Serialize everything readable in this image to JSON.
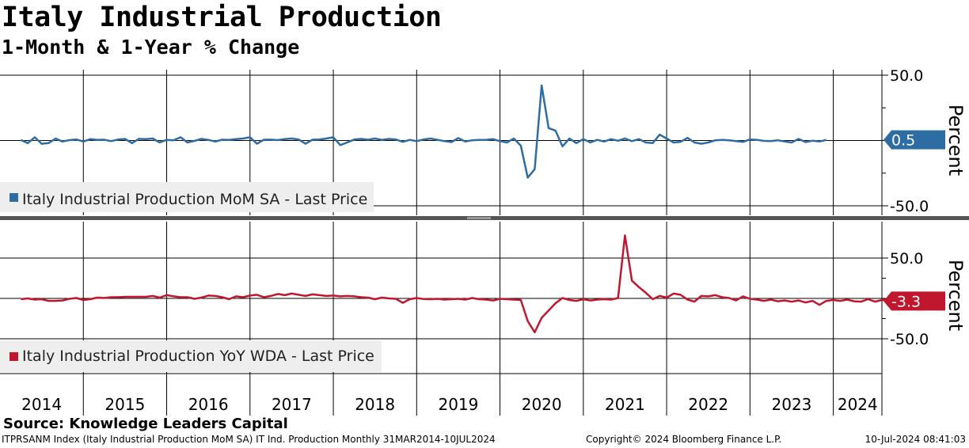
{
  "title": "Italy Industrial Production",
  "subtitle": "1-Month & 1-Year % Change",
  "source": "Source: Knowledge Leaders Capital",
  "footer": {
    "left": "ITPRSANM Index (Italy Industrial Production MoM SA) IT Ind. Production  Monthly 31MAR2014-10JUL2024",
    "middle": "Copyright© 2024 Bloomberg Finance L.P.",
    "right": "10-Jul-2024 08:41:03"
  },
  "colors": {
    "top_series": "#2e6da4",
    "bottom_series": "#c0172e",
    "grid": "#000000"
  },
  "chart_data": [
    {
      "type": "line",
      "ylabel": "Percent",
      "yticks": [
        "50.0",
        "-50.0"
      ],
      "ylim": [
        -55,
        55
      ],
      "grid": true,
      "legend_placement": "bottom-left",
      "last_value_label": "0.5",
      "series": [
        {
          "name": "Italy Industrial Production MoM SA - Last Price",
          "x_start": "2014-04",
          "values": [
            0.4,
            -2.0,
            2.5,
            -2.5,
            -2.0,
            1.5,
            -0.8,
            0.3,
            0.8,
            -0.8,
            1.0,
            0.5,
            0.6,
            -0.5,
            0.7,
            1.2,
            -2.0,
            1.3,
            1.0,
            1.5,
            -1.5,
            0.5,
            0.2,
            2.5,
            -1.5,
            -0.3,
            1.2,
            0.5,
            -0.8,
            0.6,
            0.5,
            1.0,
            1.5,
            2.5,
            -2.5,
            0.6,
            0.6,
            0.3,
            1.0,
            1.5,
            0.8,
            -2.5,
            0.6,
            0.8,
            1.5,
            2.5,
            -3.5,
            -1.5,
            0.7,
            1.2,
            0.6,
            1.5,
            0.5,
            1.2,
            0.8,
            -1.0,
            0.5,
            -0.5,
            0.8,
            1.5,
            0.5,
            -0.5,
            -1.2,
            1.8,
            -0.8,
            0.2,
            0.5,
            0.5,
            1.0,
            -0.5,
            -1.5,
            1.5,
            -4.0,
            -28.4,
            -22.0,
            42.1,
            9.5,
            7.5,
            -4.5,
            1.5,
            -2.0,
            1.0,
            -1.5,
            0.5,
            -0.8,
            1.0,
            -0.2,
            1.5,
            -0.5,
            1.0,
            -1.5,
            -2.0,
            4.5,
            1.5,
            -1.5,
            -1.0,
            2.0,
            -1.5,
            -2.5,
            -1.5,
            0.2,
            0.5,
            0.2,
            -0.5,
            -1.0,
            0.8,
            0.5,
            -0.3,
            -0.5,
            0.2,
            -0.8,
            -1.5,
            1.2,
            -1.2,
            -0.2,
            -0.8,
            0.5
          ]
        }
      ]
    },
    {
      "type": "line",
      "ylabel": "Percent",
      "yticks": [
        "50.0",
        "-50.0"
      ],
      "ylim": [
        -57,
        59
      ],
      "grid": true,
      "legend_placement": "bottom-left",
      "last_value_label": "-3.3",
      "series": [
        {
          "name": "Italy Industrial Production YoY WDA - Last Price",
          "x_start": "2014-04",
          "values": [
            -1.0,
            0.0,
            -1.5,
            -1.0,
            -3.0,
            -3.0,
            -2.5,
            -0.5,
            0.5,
            -2.0,
            -1.0,
            1.0,
            0.5,
            1.5,
            1.5,
            2.0,
            2.0,
            2.0,
            2.0,
            3.0,
            1.0,
            4.0,
            2.5,
            1.5,
            1.5,
            -0.5,
            1.0,
            3.5,
            3.0,
            1.5,
            -1.0,
            2.5,
            1.5,
            3.5,
            4.5,
            1.5,
            3.0,
            5.5,
            4.0,
            6.0,
            4.5,
            3.0,
            5.0,
            4.0,
            3.0,
            3.5,
            2.5,
            3.0,
            2.5,
            1.5,
            1.0,
            -1.0,
            1.0,
            0.0,
            -0.5,
            -5.5,
            -1.0,
            0.5,
            -0.8,
            -1.0,
            -0.5,
            -1.5,
            -1.0,
            -0.5,
            -1.5,
            0.5,
            -1.0,
            -1.5,
            -2.5,
            -0.5,
            -1.0,
            -1.5,
            -2.0,
            -28.0,
            -42.0,
            -24.0,
            -15.0,
            -6.0,
            0.5,
            -2.0,
            -3.0,
            -1.0,
            -2.5,
            -1.5,
            -1.0,
            -1.5,
            0.5,
            78.0,
            22.0,
            14.0,
            7.0,
            -1.0,
            3.0,
            1.0,
            6.0,
            4.5,
            -1.5,
            -4.0,
            3.0,
            2.5,
            4.0,
            1.5,
            0.5,
            -2.5,
            2.5,
            -0.5,
            -1.5,
            -3.0,
            -1.5,
            -3.5,
            -2.5,
            -4.0,
            -2.5,
            -5.0,
            -3.0,
            -8.0,
            -3.0,
            -2.0,
            -3.0,
            -1.5,
            -3.5,
            -4.0,
            -1.0,
            -4.0,
            -2.0,
            -1.5,
            -3.5,
            -3.5,
            -3.5,
            -2.0,
            -3.3
          ]
        }
      ]
    }
  ],
  "x_axis": {
    "labels": [
      "2014",
      "2015",
      "2016",
      "2017",
      "2018",
      "2019",
      "2020",
      "2021",
      "2022",
      "2023",
      "2024"
    ]
  }
}
